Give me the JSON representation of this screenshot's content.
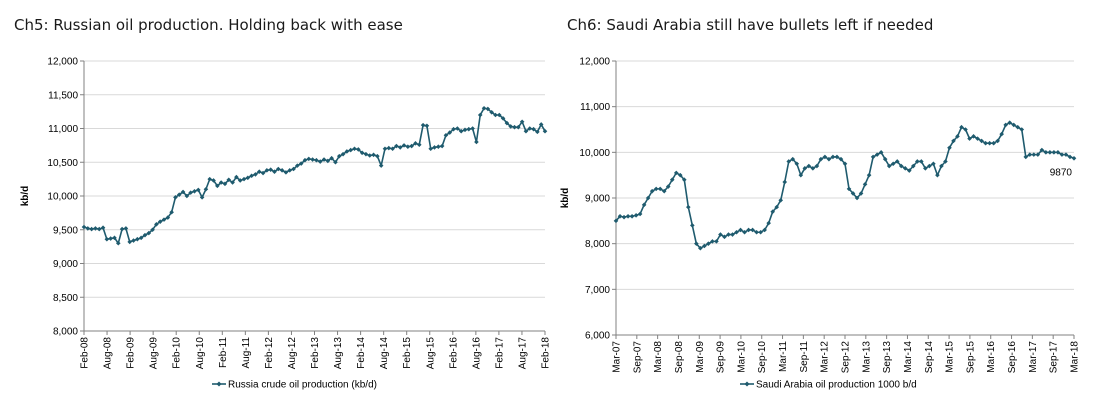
{
  "colors": {
    "series": "#1f5b6e",
    "grid": "#d9d9d9",
    "axis": "#808080",
    "text": "#000000"
  },
  "chart_data": [
    {
      "type": "line",
      "title": "Ch5: Russian oil production. Holding back with ease",
      "xlabel": "",
      "ylabel": "kb/d",
      "ylim": [
        8000,
        12000
      ],
      "yticks": [
        8000,
        8500,
        9000,
        9500,
        10000,
        10500,
        11000,
        11500,
        12000
      ],
      "ytick_labels": [
        "8,000",
        "8,500",
        "9,000",
        "9,500",
        "10,000",
        "10,500",
        "11,000",
        "11,500",
        "12,000"
      ],
      "xtick_labels": [
        "Feb-08",
        "Aug-08",
        "Feb-09",
        "Aug-09",
        "Feb-10",
        "Aug-10",
        "Feb-11",
        "Aug-11",
        "Feb-12",
        "Aug-12",
        "Feb-13",
        "Aug-13",
        "Feb-14",
        "Aug-14",
        "Feb-15",
        "Aug-15",
        "Feb-16",
        "Aug-16",
        "Feb-17",
        "Aug-17",
        "Feb-18"
      ],
      "legend": "Russia crude oil production (kb/d)",
      "legend_position": "bottom",
      "series": [
        {
          "name": "Russia crude oil production (kb/d)",
          "x_start": "Feb-08",
          "values": [
            9540,
            9520,
            9510,
            9520,
            9510,
            9530,
            9360,
            9370,
            9380,
            9300,
            9510,
            9520,
            9320,
            9340,
            9360,
            9380,
            9420,
            9450,
            9500,
            9580,
            9620,
            9650,
            9680,
            9760,
            9980,
            10020,
            10060,
            10000,
            10050,
            10070,
            10090,
            9980,
            10100,
            10250,
            10230,
            10150,
            10200,
            10180,
            10240,
            10200,
            10280,
            10230,
            10250,
            10270,
            10300,
            10320,
            10360,
            10340,
            10380,
            10390,
            10360,
            10400,
            10380,
            10350,
            10380,
            10400,
            10450,
            10480,
            10530,
            10550,
            10540,
            10530,
            10510,
            10540,
            10520,
            10560,
            10500,
            10590,
            10620,
            10660,
            10680,
            10700,
            10690,
            10640,
            10620,
            10600,
            10610,
            10590,
            10450,
            10700,
            10710,
            10700,
            10740,
            10720,
            10750,
            10730,
            10740,
            10780,
            10760,
            11050,
            11040,
            10700,
            10720,
            10730,
            10740,
            10900,
            10940,
            10990,
            11000,
            10960,
            10980,
            10990,
            11000,
            10800,
            11200,
            11300,
            11290,
            11240,
            11200,
            11200,
            11150,
            11080,
            11030,
            11020,
            11020,
            11100,
            10960,
            11000,
            10990,
            10950,
            11060,
            10960
          ]
        }
      ]
    },
    {
      "type": "line",
      "title": "Ch6: Saudi Arabia still have bullets left if needed",
      "xlabel": "",
      "ylabel": "kb/d",
      "ylim": [
        6000,
        12000
      ],
      "yticks": [
        6000,
        7000,
        8000,
        9000,
        10000,
        11000,
        12000
      ],
      "ytick_labels": [
        "6,000",
        "7,000",
        "8,000",
        "9,000",
        "10,000",
        "11,000",
        "12,000"
      ],
      "xtick_labels": [
        "Mar-07",
        "Sep-07",
        "Mar-08",
        "Sep-08",
        "Mar-09",
        "Sep-09",
        "Mar-10",
        "Sep-10",
        "Mar-11",
        "Sep-11",
        "Mar-12",
        "Sep-12",
        "Mar-13",
        "Sep-13",
        "Mar-14",
        "Sep-14",
        "Mar-15",
        "Sep-15",
        "Mar-16",
        "Sep-16",
        "Mar-17",
        "Sep-17",
        "Mar-18"
      ],
      "legend": "Saudi Arabia oil production 1000 b/d",
      "legend_position": "bottom",
      "annotation": "9870",
      "series": [
        {
          "name": "Saudi Arabia oil production 1000 b/d",
          "x_start": "Mar-07",
          "values": [
            8500,
            8600,
            8580,
            8600,
            8600,
            8620,
            8650,
            8850,
            9000,
            9150,
            9200,
            9200,
            9150,
            9250,
            9400,
            9550,
            9500,
            9400,
            8800,
            8400,
            8000,
            7900,
            7950,
            8000,
            8050,
            8050,
            8200,
            8150,
            8200,
            8200,
            8250,
            8300,
            8250,
            8300,
            8300,
            8250,
            8250,
            8300,
            8450,
            8700,
            8800,
            8950,
            9350,
            9800,
            9850,
            9750,
            9500,
            9650,
            9700,
            9650,
            9700,
            9850,
            9900,
            9850,
            9900,
            9900,
            9850,
            9750,
            9200,
            9100,
            9000,
            9100,
            9300,
            9500,
            9900,
            9950,
            10000,
            9850,
            9700,
            9750,
            9800,
            9700,
            9650,
            9600,
            9700,
            9800,
            9800,
            9650,
            9700,
            9750,
            9500,
            9700,
            9800,
            10100,
            10250,
            10350,
            10550,
            10500,
            10300,
            10350,
            10300,
            10250,
            10200,
            10200,
            10200,
            10250,
            10400,
            10600,
            10650,
            10600,
            10550,
            10500,
            9900,
            9950,
            9950,
            9950,
            10050,
            10000,
            10000,
            10000,
            10000,
            9950,
            9950,
            9900,
            9870
          ]
        }
      ]
    }
  ]
}
